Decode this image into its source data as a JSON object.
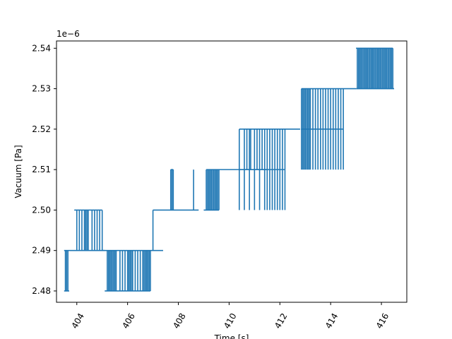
{
  "chart_data": {
    "type": "line",
    "title": "",
    "xlabel": "Time [s]",
    "ylabel": "Vacuum [Pa]",
    "y_scale_label": "1e−6",
    "xlim": [
      403.2,
      417.0
    ],
    "ylim": [
      2.4772,
      2.5418
    ],
    "x_ticks": [
      404,
      406,
      408,
      410,
      412,
      414,
      416
    ],
    "x_tick_labels": [
      "404",
      "406",
      "408",
      "410",
      "412",
      "414",
      "416"
    ],
    "y_ticks": [
      2.48,
      2.49,
      2.5,
      2.51,
      2.52,
      2.53,
      2.54
    ],
    "y_tick_labels": [
      "2.48",
      "2.49",
      "2.50",
      "2.51",
      "2.52",
      "2.53",
      "2.54"
    ],
    "x_tick_rotation_deg": 60,
    "grid": false,
    "legend": false,
    "series": [
      {
        "color": "#1f77b4",
        "levels": [
          {
            "y": 2.49,
            "x": [
              403.5,
              405.1
            ]
          },
          {
            "y": 2.48,
            "x": [
              403.5,
              403.7
            ],
            "spikes": [
              403.55,
              403.6,
              403.65
            ]
          },
          {
            "y": 2.5,
            "x": [
              403.9,
              405.0
            ],
            "spikes": [
              404.0,
              404.1,
              404.2,
              404.3,
              404.35,
              404.4,
              404.45,
              404.6,
              404.7,
              404.8,
              404.9,
              405.0
            ]
          },
          {
            "y": 2.48,
            "x": [
              405.1,
              406.9
            ],
            "spikes": [
              405.2,
              405.25,
              405.3,
              405.35,
              405.4,
              405.45,
              405.5,
              405.55,
              405.7,
              405.8,
              405.9,
              406.0,
              406.05,
              406.1,
              406.15,
              406.2,
              406.3,
              406.4,
              406.5,
              406.6,
              406.65,
              406.7,
              406.75,
              406.8,
              406.85,
              406.9
            ]
          },
          {
            "y": 2.49,
            "x": [
              405.0,
              407.4
            ]
          },
          {
            "y": 2.5,
            "x": [
              407.0,
              408.8
            ],
            "spikes": [
              407.0,
              407.3,
              407.35,
              407.4,
              407.45,
              407.5
            ]
          },
          {
            "y": 2.51,
            "x": [
              407.7,
              407.8
            ],
            "spikes": [
              407.7,
              407.75,
              407.8,
              408.6
            ]
          },
          {
            "y": 2.51,
            "x": [
              409.1,
              411.5
            ],
            "spikes": [
              409.1,
              409.15,
              409.2,
              409.25,
              409.3,
              409.35,
              409.4,
              409.45,
              409.5,
              409.55,
              409.6
            ]
          },
          {
            "y": 2.5,
            "x": [
              409.0,
              409.6
            ],
            "spikes": [
              409.1,
              409.2,
              409.3,
              409.4,
              409.5,
              409.6
            ]
          },
          {
            "y": 2.52,
            "x": [
              410.4,
              412.8
            ],
            "spikes": [
              410.4,
              410.6,
              410.7,
              410.8,
              410.85,
              411.0,
              411.1,
              411.2,
              411.3,
              411.4,
              411.5,
              411.6,
              411.7,
              411.8,
              411.9,
              412.0,
              412.1,
              412.2
            ]
          },
          {
            "y": 2.51,
            "x": [
              410.4,
              412.2
            ],
            "spikes": [
              410.4,
              410.6,
              410.8,
              411.0,
              411.2,
              411.4,
              411.5,
              411.6,
              411.7,
              411.8,
              411.9,
              412.0,
              412.1,
              412.2
            ]
          },
          {
            "y": 2.53,
            "x": [
              412.85,
              415.0
            ],
            "spikes": [
              412.85,
              412.9,
              412.95,
              413.0,
              413.05,
              413.1,
              413.15,
              413.2,
              413.3,
              413.4,
              413.5,
              413.6,
              413.7,
              413.8,
              413.9,
              414.0,
              414.1,
              414.2,
              414.3,
              414.4,
              414.5
            ]
          },
          {
            "y": 2.52,
            "x": [
              412.85,
              414.5
            ],
            "spikes": [
              412.85,
              412.9,
              412.95,
              413.0,
              413.05,
              413.1,
              413.15,
              413.2,
              413.3,
              413.4,
              413.5,
              413.6,
              413.7,
              413.8,
              413.9,
              414.0,
              414.1,
              414.2,
              414.3,
              414.4,
              414.5
            ]
          },
          {
            "y": 2.54,
            "x": [
              415.0,
              416.45
            ],
            "spikes": [
              415.05,
              415.1,
              415.15,
              415.2,
              415.25,
              415.3,
              415.35,
              415.4,
              415.45,
              415.5,
              415.55,
              415.6,
              415.65,
              415.7,
              415.75,
              415.8,
              415.85,
              415.9,
              415.95,
              416.0,
              416.05,
              416.1,
              416.15,
              416.2,
              416.25,
              416.3,
              416.35,
              416.4,
              416.45
            ]
          },
          {
            "y": 2.53,
            "x": [
              415.0,
              416.5
            ]
          }
        ]
      }
    ]
  }
}
